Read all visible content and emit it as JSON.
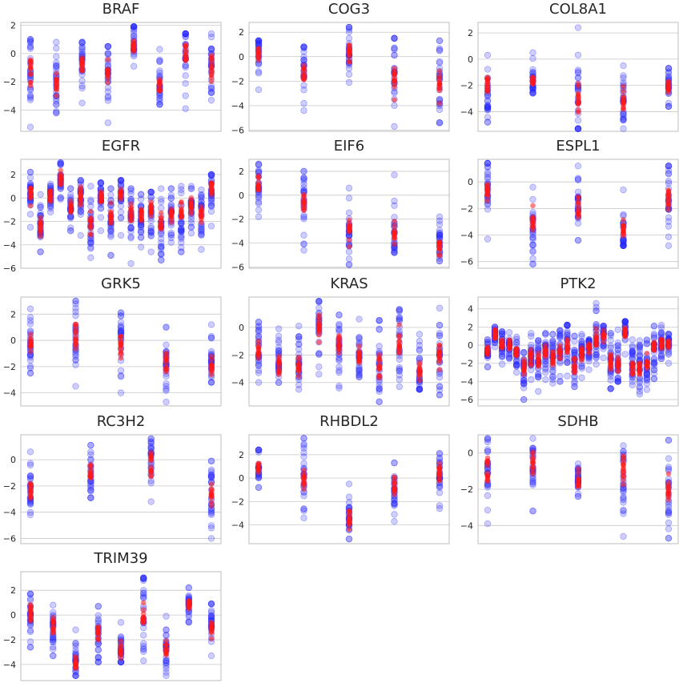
{
  "figure": {
    "rows": 5,
    "cols": 3
  },
  "colors": {
    "blue": "#2424ff",
    "red": "#ff1a1a",
    "grid": "#c8c8c8",
    "frame": "#bdbdbd",
    "tick_text": "#262626"
  },
  "chart_data": [
    {
      "type": "scatter",
      "title": "BRAF",
      "ylim": [
        -5.5,
        2.2
      ],
      "yticks": [
        2,
        0,
        -2,
        -4
      ],
      "grid": true,
      "groups": [
        {
          "blue_min": -5.2,
          "blue_max": 1.0,
          "blue_center": -0.9,
          "red_center": -1.1
        },
        {
          "blue_min": -4.2,
          "blue_max": 0.8,
          "blue_center": -2.1,
          "red_center": -2.2
        },
        {
          "blue_min": -3.5,
          "blue_max": 0.8,
          "blue_center": -0.5,
          "red_center": -0.7
        },
        {
          "blue_min": -4.9,
          "blue_max": 0.5,
          "blue_center": -1.4,
          "red_center": -1.6
        },
        {
          "blue_min": -0.9,
          "blue_max": 1.9,
          "blue_center": 0.6,
          "red_center": 0.6
        },
        {
          "blue_min": -3.6,
          "blue_max": 0.3,
          "blue_center": -2.3,
          "red_center": -2.4
        },
        {
          "blue_min": -3.9,
          "blue_max": 1.4,
          "blue_center": 0.1,
          "red_center": 0.0
        },
        {
          "blue_min": -3.3,
          "blue_max": 1.4,
          "blue_center": -0.9,
          "red_center": -0.9
        }
      ]
    },
    {
      "type": "scatter",
      "title": "COG3",
      "ylim": [
        -6.1,
        2.8
      ],
      "yticks": [
        2,
        0,
        -2,
        -4,
        -6
      ],
      "grid": true,
      "groups": [
        {
          "blue_min": -2.7,
          "blue_max": 1.3,
          "blue_center": 0.3,
          "red_center": 0.2
        },
        {
          "blue_min": -4.4,
          "blue_max": 0.8,
          "blue_center": -1.1,
          "red_center": -1.3
        },
        {
          "blue_min": -2.1,
          "blue_max": 2.4,
          "blue_center": 0.4,
          "red_center": 0.3
        },
        {
          "blue_min": -5.7,
          "blue_max": 1.5,
          "blue_center": -1.9,
          "red_center": -1.9
        },
        {
          "blue_min": -5.4,
          "blue_max": 1.3,
          "blue_center": -2.2,
          "red_center": -2.4
        }
      ]
    },
    {
      "type": "scatter",
      "title": "COL8A1",
      "ylim": [
        -5.5,
        2.8
      ],
      "yticks": [
        2,
        0,
        -2,
        -4
      ],
      "grid": true,
      "groups": [
        {
          "blue_min": -4.8,
          "blue_max": 0.3,
          "blue_center": -2.6,
          "red_center": -1.9
        },
        {
          "blue_min": -2.6,
          "blue_max": 0.5,
          "blue_center": -1.6,
          "red_center": -1.6
        },
        {
          "blue_min": -5.3,
          "blue_max": 2.4,
          "blue_center": -3.1,
          "red_center": -2.9
        },
        {
          "blue_min": -5.3,
          "blue_max": -0.5,
          "blue_center": -3.3,
          "red_center": -3.3
        },
        {
          "blue_min": -3.6,
          "blue_max": -0.7,
          "blue_center": -2.1,
          "red_center": -2.1
        }
      ]
    },
    {
      "type": "scatter",
      "title": "EGFR",
      "ylim": [
        -6.0,
        3.3
      ],
      "yticks": [
        2,
        0,
        -2,
        -4,
        -6
      ],
      "grid": true,
      "groups": [
        {
          "blue_min": -2.5,
          "blue_max": 2.2,
          "blue_center": 0.4,
          "red_center": 0.4
        },
        {
          "blue_min": -4.6,
          "blue_max": 0.3,
          "blue_center": -2.3,
          "red_center": -2.4
        },
        {
          "blue_min": -1.2,
          "blue_max": 1.2,
          "blue_center": 0.2,
          "red_center": 0.1
        },
        {
          "blue_min": -0.1,
          "blue_max": 3.0,
          "blue_center": 1.6,
          "red_center": 1.6
        },
        {
          "blue_min": -2.8,
          "blue_max": 0.8,
          "blue_center": -0.8,
          "red_center": -0.6
        },
        {
          "blue_min": -3.2,
          "blue_max": 1.5,
          "blue_center": 0.3,
          "red_center": 0.2
        },
        {
          "blue_min": -5.1,
          "blue_max": 1.0,
          "blue_center": -2.2,
          "red_center": -2.3
        },
        {
          "blue_min": -2.8,
          "blue_max": 1.3,
          "blue_center": 0.0,
          "red_center": 0.0
        },
        {
          "blue_min": -4.9,
          "blue_max": 0.8,
          "blue_center": -2.0,
          "red_center": -1.5
        },
        {
          "blue_min": -3.2,
          "blue_max": 1.5,
          "blue_center": 0.4,
          "red_center": 0.2
        },
        {
          "blue_min": -5.6,
          "blue_max": 0.8,
          "blue_center": -1.5,
          "red_center": -1.3
        },
        {
          "blue_min": -4.2,
          "blue_max": 0.3,
          "blue_center": -1.7,
          "red_center": -1.5
        },
        {
          "blue_min": -4.6,
          "blue_max": 0.5,
          "blue_center": -1.1,
          "red_center": -1.1
        },
        {
          "blue_min": -5.3,
          "blue_max": 0.8,
          "blue_center": -2.6,
          "red_center": -2.3
        },
        {
          "blue_min": -3.8,
          "blue_max": 0.8,
          "blue_center": -1.5,
          "red_center": -1.4
        },
        {
          "blue_min": -4.6,
          "blue_max": 1.0,
          "blue_center": -1.9,
          "red_center": -1.5
        },
        {
          "blue_min": -3.0,
          "blue_max": 1.0,
          "blue_center": -0.8,
          "red_center": -0.6
        },
        {
          "blue_min": -4.4,
          "blue_max": 0.7,
          "blue_center": -1.5,
          "red_center": -1.5
        },
        {
          "blue_min": -2.4,
          "blue_max": 2.0,
          "blue_center": 0.6,
          "red_center": 0.8
        }
      ]
    },
    {
      "type": "scatter",
      "title": "EIF6",
      "ylim": [
        -6.1,
        3.0
      ],
      "yticks": [
        2,
        0,
        -2,
        -4,
        -6
      ],
      "grid": true,
      "groups": [
        {
          "blue_min": -1.8,
          "blue_max": 2.6,
          "blue_center": 0.7,
          "red_center": 0.7
        },
        {
          "blue_min": -4.6,
          "blue_max": 2.0,
          "blue_center": -0.6,
          "red_center": -0.7
        },
        {
          "blue_min": -5.8,
          "blue_max": 0.6,
          "blue_center": -3.0,
          "red_center": -3.1
        },
        {
          "blue_min": -4.8,
          "blue_max": 1.7,
          "blue_center": -3.1,
          "red_center": -3.2
        },
        {
          "blue_min": -5.5,
          "blue_max": -1.8,
          "blue_center": -4.2,
          "red_center": -4.3
        }
      ]
    },
    {
      "type": "scatter",
      "title": "ESPL1",
      "ylim": [
        -6.5,
        1.7
      ],
      "yticks": [
        0,
        -2,
        -4,
        -6
      ],
      "grid": true,
      "groups": [
        {
          "blue_min": -4.3,
          "blue_max": 1.4,
          "blue_center": -0.5,
          "red_center": -0.6
        },
        {
          "blue_min": -6.2,
          "blue_max": -0.4,
          "blue_center": -3.2,
          "red_center": -3.2
        },
        {
          "blue_min": -4.4,
          "blue_max": 1.2,
          "blue_center": -1.7,
          "red_center": -1.8
        },
        {
          "blue_min": -4.8,
          "blue_max": -0.6,
          "blue_center": -3.7,
          "red_center": -3.5
        },
        {
          "blue_min": -4.8,
          "blue_max": 1.2,
          "blue_center": -1.0,
          "red_center": -1.2
        }
      ]
    },
    {
      "type": "scatter",
      "title": "GRK5",
      "ylim": [
        -5.0,
        3.3
      ],
      "yticks": [
        2,
        0,
        -2,
        -4
      ],
      "grid": true,
      "groups": [
        {
          "blue_min": -2.5,
          "blue_max": 2.4,
          "blue_center": -0.2,
          "red_center": -0.3
        },
        {
          "blue_min": -3.5,
          "blue_max": 3.0,
          "blue_center": 0.3,
          "red_center": 0.2
        },
        {
          "blue_min": -4.0,
          "blue_max": 2.1,
          "blue_center": -0.4,
          "red_center": -0.4
        },
        {
          "blue_min": -4.7,
          "blue_max": 1.0,
          "blue_center": -1.6,
          "red_center": -1.7
        },
        {
          "blue_min": -3.2,
          "blue_max": 1.2,
          "blue_center": -1.7,
          "red_center": -1.9
        }
      ]
    },
    {
      "type": "scatter",
      "title": "KRAS",
      "ylim": [
        -5.7,
        2.2
      ],
      "yticks": [
        0,
        -2,
        -4
      ],
      "grid": true,
      "groups": [
        {
          "blue_min": -4.0,
          "blue_max": 0.4,
          "blue_center": -1.6,
          "red_center": -1.8
        },
        {
          "blue_min": -4.0,
          "blue_max": -0.1,
          "blue_center": -2.5,
          "red_center": -2.6
        },
        {
          "blue_min": -4.5,
          "blue_max": 0.1,
          "blue_center": -2.7,
          "red_center": -2.9
        },
        {
          "blue_min": -3.4,
          "blue_max": 1.9,
          "blue_center": 0.1,
          "red_center": 0.1
        },
        {
          "blue_min": -4.4,
          "blue_max": 0.9,
          "blue_center": -1.3,
          "red_center": -1.3
        },
        {
          "blue_min": -3.6,
          "blue_max": 0.6,
          "blue_center": -2.1,
          "red_center": -2.1
        },
        {
          "blue_min": -5.4,
          "blue_max": 0.5,
          "blue_center": -2.8,
          "red_center": -2.8
        },
        {
          "blue_min": -4.3,
          "blue_max": 1.3,
          "blue_center": -1.0,
          "red_center": -1.2
        },
        {
          "blue_min": -4.5,
          "blue_max": -0.5,
          "blue_center": -3.2,
          "red_center": -3.1
        },
        {
          "blue_min": -4.9,
          "blue_max": 1.4,
          "blue_center": -1.9,
          "red_center": -1.8
        }
      ]
    },
    {
      "type": "scatter",
      "title": "PTK2",
      "ylim": [
        -6.7,
        5.3
      ],
      "yticks": [
        4,
        2,
        0,
        -2,
        -4,
        -6
      ],
      "grid": true,
      "groups": [
        {
          "blue_min": -2.4,
          "blue_max": 0.6,
          "blue_center": -0.6,
          "red_center": -0.7
        },
        {
          "blue_min": -0.2,
          "blue_max": 2.0,
          "blue_center": 1.2,
          "red_center": 1.1
        },
        {
          "blue_min": -2.1,
          "blue_max": 1.5,
          "blue_center": 0.1,
          "red_center": 0.1
        },
        {
          "blue_min": -1.5,
          "blue_max": 1.4,
          "blue_center": -0.2,
          "red_center": 0.0
        },
        {
          "blue_min": -3.0,
          "blue_max": 0.9,
          "blue_center": -0.9,
          "red_center": -0.8
        },
        {
          "blue_min": -6.0,
          "blue_max": -0.8,
          "blue_center": -2.9,
          "red_center": -2.6
        },
        {
          "blue_min": -3.8,
          "blue_max": 1.3,
          "blue_center": -1.2,
          "red_center": -1.3
        },
        {
          "blue_min": -5.1,
          "blue_max": 0.5,
          "blue_center": -1.8,
          "red_center": -1.7
        },
        {
          "blue_min": -3.8,
          "blue_max": 1.3,
          "blue_center": -1.0,
          "red_center": -0.9
        },
        {
          "blue_min": -4.2,
          "blue_max": 1.2,
          "blue_center": -1.5,
          "red_center": -1.5
        },
        {
          "blue_min": -4.0,
          "blue_max": 1.6,
          "blue_center": -0.7,
          "red_center": -0.9
        },
        {
          "blue_min": -3.4,
          "blue_max": 2.2,
          "blue_center": 0.0,
          "red_center": -0.1
        },
        {
          "blue_min": -4.6,
          "blue_max": 1.0,
          "blue_center": -1.9,
          "red_center": -2.2
        },
        {
          "blue_min": -3.6,
          "blue_max": 1.2,
          "blue_center": -0.5,
          "red_center": -0.7
        },
        {
          "blue_min": -2.7,
          "blue_max": 0.6,
          "blue_center": 0.0,
          "red_center": -0.2
        },
        {
          "blue_min": -2.1,
          "blue_max": 4.6,
          "blue_center": 0.6,
          "red_center": 0.6
        },
        {
          "blue_min": -1.4,
          "blue_max": 2.1,
          "blue_center": 1.1,
          "red_center": 1.0
        },
        {
          "blue_min": -4.8,
          "blue_max": 1.3,
          "blue_center": -1.8,
          "red_center": -2.0
        },
        {
          "blue_min": -4.0,
          "blue_max": 1.7,
          "blue_center": -2.0,
          "red_center": -2.2
        },
        {
          "blue_min": -1.0,
          "blue_max": 2.6,
          "blue_center": 1.6,
          "red_center": 1.6
        },
        {
          "blue_min": -4.4,
          "blue_max": 0.6,
          "blue_center": -2.3,
          "red_center": -2.5
        },
        {
          "blue_min": -5.4,
          "blue_max": 0.5,
          "blue_center": -2.4,
          "red_center": -2.6
        },
        {
          "blue_min": -4.9,
          "blue_max": 0.6,
          "blue_center": -1.9,
          "red_center": -2.1
        },
        {
          "blue_min": -3.7,
          "blue_max": 2.1,
          "blue_center": -0.2,
          "red_center": -0.1
        },
        {
          "blue_min": -1.5,
          "blue_max": 2.2,
          "blue_center": 0.2,
          "red_center": 0.2
        },
        {
          "blue_min": -2.0,
          "blue_max": 1.2,
          "blue_center": 0.2,
          "red_center": 0.2
        }
      ]
    },
    {
      "type": "scatter",
      "title": "RC3H2",
      "ylim": [
        -6.4,
        1.9
      ],
      "yticks": [
        0,
        -2,
        -4,
        -6
      ],
      "grid": true,
      "groups": [
        {
          "blue_min": -4.2,
          "blue_max": 0.6,
          "blue_center": -2.1,
          "red_center": -2.3
        },
        {
          "blue_min": -2.9,
          "blue_max": 1.1,
          "blue_center": -0.9,
          "red_center": -1.1
        },
        {
          "blue_min": -3.2,
          "blue_max": 1.6,
          "blue_center": -0.2,
          "red_center": -0.4
        },
        {
          "blue_min": -6.0,
          "blue_max": -0.1,
          "blue_center": -2.7,
          "red_center": -2.7
        }
      ]
    },
    {
      "type": "scatter",
      "title": "RHBDL2",
      "ylim": [
        -5.6,
        3.7
      ],
      "yticks": [
        2,
        0,
        -2,
        -4
      ],
      "grid": true,
      "groups": [
        {
          "blue_min": -0.8,
          "blue_max": 2.4,
          "blue_center": 0.9,
          "red_center": 0.9
        },
        {
          "blue_min": -3.4,
          "blue_max": 3.4,
          "blue_center": 0.0,
          "red_center": 0.0
        },
        {
          "blue_min": -5.2,
          "blue_max": -0.5,
          "blue_center": -3.5,
          "red_center": -3.5
        },
        {
          "blue_min": -3.7,
          "blue_max": 1.3,
          "blue_center": -1.2,
          "red_center": -1.0
        },
        {
          "blue_min": -2.6,
          "blue_max": 2.1,
          "blue_center": 0.3,
          "red_center": 0.3
        }
      ]
    },
    {
      "type": "scatter",
      "title": "SDHB",
      "ylim": [
        -5.0,
        1.0
      ],
      "yticks": [
        0,
        -2,
        -4
      ],
      "grid": true,
      "groups": [
        {
          "blue_min": -3.9,
          "blue_max": 0.8,
          "blue_center": -0.9,
          "red_center": -0.9
        },
        {
          "blue_min": -3.2,
          "blue_max": 0.8,
          "blue_center": -0.4,
          "red_center": -0.5
        },
        {
          "blue_min": -2.4,
          "blue_max": -0.6,
          "blue_center": -1.5,
          "red_center": -1.6
        },
        {
          "blue_min": -4.6,
          "blue_max": 0.4,
          "blue_center": -1.3,
          "red_center": -1.1
        },
        {
          "blue_min": -4.7,
          "blue_max": 0.7,
          "blue_center": -2.0,
          "red_center": -2.0
        }
      ]
    },
    {
      "type": "scatter",
      "title": "TRIM39",
      "ylim": [
        -5.3,
        3.5
      ],
      "yticks": [
        2,
        0,
        -2,
        -4
      ],
      "grid": true,
      "groups": [
        {
          "blue_min": -2.6,
          "blue_max": 1.7,
          "blue_center": 0.0,
          "red_center": 0.1
        },
        {
          "blue_min": -3.3,
          "blue_max": 0.8,
          "blue_center": -1.0,
          "red_center": -0.9
        },
        {
          "blue_min": -4.9,
          "blue_max": -1.2,
          "blue_center": -3.9,
          "red_center": -3.9
        },
        {
          "blue_min": -3.8,
          "blue_max": 0.7,
          "blue_center": -1.7,
          "red_center": -1.6
        },
        {
          "blue_min": -3.8,
          "blue_max": -0.6,
          "blue_center": -2.9,
          "red_center": -2.9
        },
        {
          "blue_min": -3.7,
          "blue_max": 3.0,
          "blue_center": 0.0,
          "red_center": 0.0
        },
        {
          "blue_min": -4.9,
          "blue_max": -0.1,
          "blue_center": -2.8,
          "red_center": -2.8
        },
        {
          "blue_min": -0.6,
          "blue_max": 2.2,
          "blue_center": 1.0,
          "red_center": 0.9
        },
        {
          "blue_min": -3.3,
          "blue_max": 0.9,
          "blue_center": -1.0,
          "red_center": -1.1
        }
      ]
    }
  ]
}
